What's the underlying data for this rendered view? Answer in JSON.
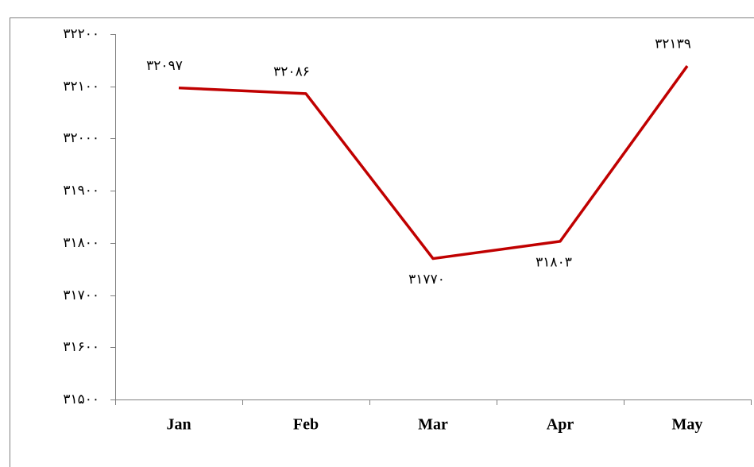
{
  "chart_data": {
    "type": "line",
    "categories": [
      "Jan",
      "Feb",
      "Mar",
      "Apr",
      "May"
    ],
    "series": [
      {
        "name": null,
        "color": "#c00000",
        "values": [
          32097,
          32086,
          31770,
          31803,
          32139
        ],
        "value_labels": [
          "۳۲۰۹۷",
          "۳۲۰۸۶",
          "۳۱۷۷۰",
          "۳۱۸۰۳",
          "۳۲۱۳۹"
        ]
      }
    ],
    "ylim": [
      31500,
      32200
    ],
    "yticks": [
      {
        "value": 31500,
        "label": "۳۱۵۰۰"
      },
      {
        "value": 31600,
        "label": "۳۱۶۰۰"
      },
      {
        "value": 31700,
        "label": "۳۱۷۰۰"
      },
      {
        "value": 31800,
        "label": "۳۱۸۰۰"
      },
      {
        "value": 31900,
        "label": "۳۱۹۰۰"
      },
      {
        "value": 32000,
        "label": "۳۲۰۰۰"
      },
      {
        "value": 32100,
        "label": "۳۲۱۰۰"
      },
      {
        "value": 32200,
        "label": "۳۲۲۰۰"
      }
    ],
    "grid": false
  }
}
